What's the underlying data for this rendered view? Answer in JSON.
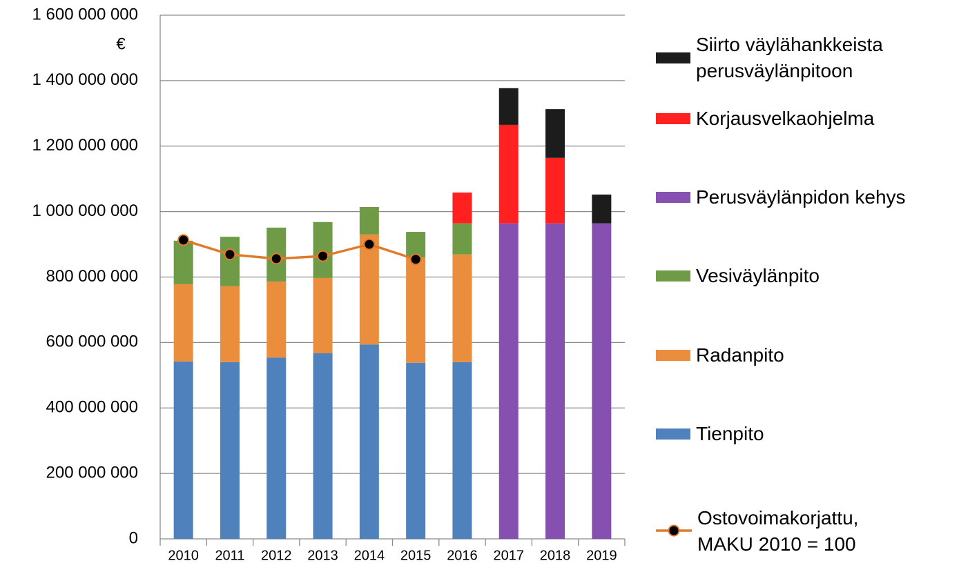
{
  "chart_data": {
    "type": "stacked_bar_line",
    "y_label": "€",
    "categories": [
      "2010",
      "2011",
      "2012",
      "2013",
      "2014",
      "2015",
      "2016",
      "2017",
      "2018",
      "2019"
    ],
    "series": [
      {
        "name": "Tienpito",
        "color": "#4f81bd",
        "type": "bar",
        "values": [
          542000000,
          540000000,
          554000000,
          567000000,
          594000000,
          538000000,
          540000000,
          null,
          null,
          null
        ]
      },
      {
        "name": "Radanpito",
        "color": "#ea8e3e",
        "type": "bar",
        "values": [
          236000000,
          232000000,
          232000000,
          230000000,
          336000000,
          322000000,
          329000000,
          null,
          null,
          null
        ]
      },
      {
        "name": "Vesiväylänpito",
        "color": "#6f9a46",
        "type": "bar",
        "values": [
          133000000,
          151000000,
          165000000,
          171000000,
          84000000,
          78000000,
          95000000,
          null,
          null,
          null
        ]
      },
      {
        "name": "Perusväylänpidon kehys",
        "color": "#8550b0",
        "type": "bar",
        "values": [
          null,
          null,
          null,
          null,
          null,
          null,
          null,
          964000000,
          964000000,
          964000000
        ]
      },
      {
        "name": "Korjausvelkaohjelma",
        "color": "#ff2020",
        "type": "bar",
        "values": [
          null,
          null,
          null,
          null,
          null,
          null,
          94000000,
          301000000,
          200000000,
          null
        ]
      },
      {
        "name": "Siirto väylähankkeista\nperusväylänpitoon",
        "color": "#1c1c1c",
        "type": "bar",
        "values": [
          null,
          null,
          null,
          null,
          null,
          null,
          null,
          112000000,
          149000000,
          88000000
        ]
      },
      {
        "name": "Ostovoimakorjattu,\nMAKU 2010 = 100",
        "color": "#e07b2c",
        "marker_color": "#000000",
        "type": "line",
        "values": [
          913000000,
          869000000,
          856000000,
          864000000,
          900000000,
          854000000,
          null,
          null,
          null,
          null
        ]
      }
    ],
    "ylim": [
      0,
      1600000000
    ],
    "yticks": [
      0,
      {
        "value": 200000000,
        "label": "200 000 000"
      },
      {
        "value": 400000000,
        "label": "400 000 000"
      },
      {
        "value": 600000000,
        "label": "600 000 000"
      },
      {
        "value": 800000000,
        "label": "800 000 000"
      },
      {
        "value": 1000000000,
        "label": "1 000 000 000"
      },
      {
        "value": 1200000000,
        "label": "1 200 000 000"
      },
      {
        "value": 1400000000,
        "label": "1 400 000 000"
      },
      {
        "value": 1600000000,
        "label": "1 600 000 000"
      }
    ],
    "grid": true,
    "legend_position": "right"
  }
}
